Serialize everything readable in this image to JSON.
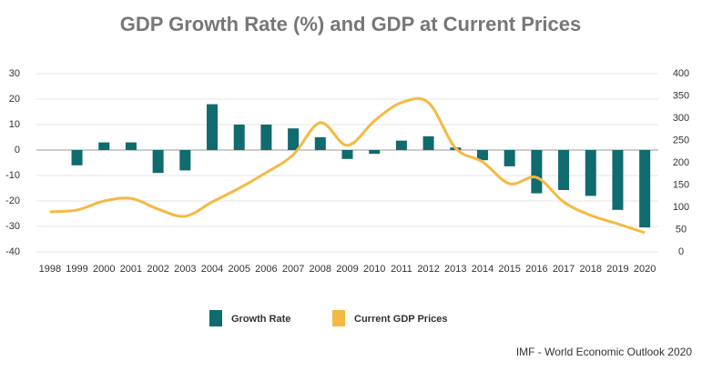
{
  "chart_data": {
    "type": "bar-line",
    "title": "GDP Growth Rate (%) and GDP at Current Prices",
    "source": "IMF - World Economic Outlook 2020",
    "categories": [
      "1998",
      "1999",
      "2000",
      "2001",
      "2002",
      "2003",
      "2004",
      "2005",
      "2006",
      "2007",
      "2008",
      "2009",
      "2010",
      "2011",
      "2012",
      "2013",
      "2014",
      "2015",
      "2016",
      "2017",
      "2018",
      "2019",
      "2020"
    ],
    "series": [
      {
        "name": "Growth Rate",
        "type": "bar",
        "color": "#0f6b6e",
        "values": [
          0,
          -6,
          3,
          3,
          -9,
          -8,
          18,
          10,
          10,
          8.5,
          5,
          -3.5,
          -1.5,
          3.7,
          5.4,
          1,
          -4,
          -6.4,
          -17,
          -15.7,
          -18,
          -23.5,
          -30.4
        ]
      },
      {
        "name": "Current GDP Prices",
        "type": "line",
        "axis": "y2",
        "color": "#f5b942",
        "values": [
          90,
          94,
          114,
          120,
          96,
          80,
          112,
          143,
          178,
          218,
          290,
          239,
          294,
          335,
          335,
          233,
          202,
          153,
          167,
          112,
          82,
          63,
          43
        ]
      }
    ],
    "ylim": [
      -40,
      30
    ],
    "yticks": [
      30,
      20,
      10,
      0,
      -10,
      -20,
      -30,
      -40
    ],
    "y2lim": [
      0,
      400
    ],
    "y2ticks": [
      400,
      350,
      300,
      250,
      200,
      150,
      100,
      50,
      0
    ],
    "legend": "bottom"
  }
}
